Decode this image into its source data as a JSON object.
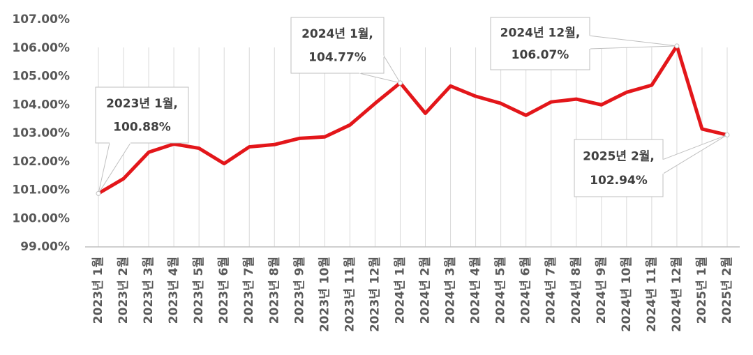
{
  "chart_data": {
    "type": "line",
    "categories": [
      "2023년 1월",
      "2023년 2월",
      "2023년 3월",
      "2023년 4월",
      "2023년 5월",
      "2023년 6월",
      "2023년 7월",
      "2023년 8월",
      "2023년 9월",
      "2023년 10월",
      "2023년 11월",
      "2023년 12월",
      "2024년 1월",
      "2024년 2월",
      "2024년 3월",
      "2024년 4월",
      "2024년 5월",
      "2024년 6월",
      "2024년 7월",
      "2024년 8월",
      "2024년 9월",
      "2024년 10월",
      "2024년 11월",
      "2024년 12월",
      "2025년 1월",
      "2025년 2월"
    ],
    "values": [
      100.88,
      101.4,
      102.33,
      102.62,
      102.47,
      101.93,
      102.52,
      102.6,
      102.82,
      102.87,
      103.29,
      104.05,
      104.77,
      103.7,
      104.66,
      104.3,
      104.05,
      103.63,
      104.1,
      104.2,
      104.0,
      104.44,
      104.69,
      106.07,
      103.15,
      102.94
    ],
    "value_labels": [
      "100.88%",
      null,
      null,
      null,
      null,
      null,
      null,
      null,
      null,
      null,
      null,
      null,
      "104.77%",
      null,
      null,
      null,
      null,
      null,
      null,
      null,
      null,
      null,
      null,
      "106.07%",
      null,
      "102.94%"
    ],
    "annotations": [
      "2023년 1월,",
      null,
      null,
      null,
      null,
      null,
      null,
      null,
      null,
      null,
      null,
      null,
      "2024년 1월,",
      null,
      null,
      null,
      null,
      null,
      null,
      null,
      null,
      null,
      null,
      "2024년 12월,",
      null,
      "2025년 2월,"
    ],
    "color": "#e3161a",
    "ylim": [
      99,
      107
    ],
    "yticks": [
      {
        "value": 99,
        "label": "99.00%"
      },
      {
        "value": 100,
        "label": "100.00%"
      },
      {
        "value": 101,
        "label": "101.00%"
      },
      {
        "value": 102,
        "label": "102.00%"
      },
      {
        "value": 103,
        "label": "103.00%"
      },
      {
        "value": 104,
        "label": "104.00%"
      },
      {
        "value": 105,
        "label": "105.00%"
      },
      {
        "value": 106,
        "label": "106.00%"
      },
      {
        "value": 107,
        "label": "107.00%"
      }
    ],
    "grid": true
  }
}
